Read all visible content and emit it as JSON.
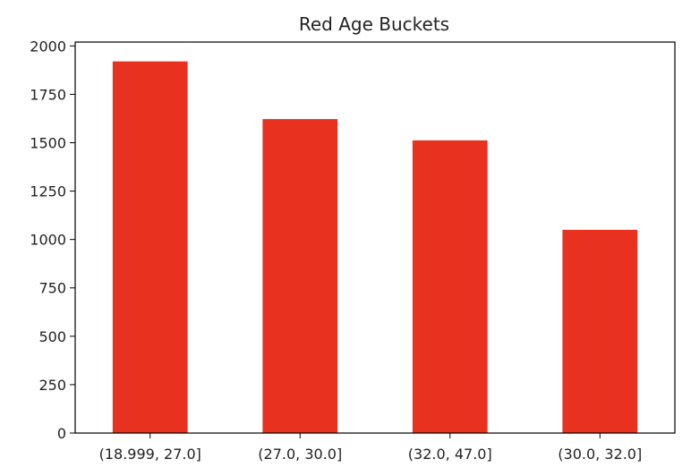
{
  "chart_data": {
    "type": "bar",
    "title": "Red Age Buckets",
    "xlabel": "",
    "ylabel": "",
    "categories": [
      "(18.999, 27.0]",
      "(27.0, 30.0]",
      "(32.0, 47.0]",
      "(30.0, 32.0]"
    ],
    "values": [
      1920,
      1622,
      1512,
      1050
    ],
    "ylim": [
      0,
      2020
    ],
    "yticks": [
      0,
      250,
      500,
      750,
      1000,
      1250,
      1500,
      1750,
      2000
    ],
    "grid": false,
    "bar_color": "#e8311f",
    "legend": "none"
  }
}
